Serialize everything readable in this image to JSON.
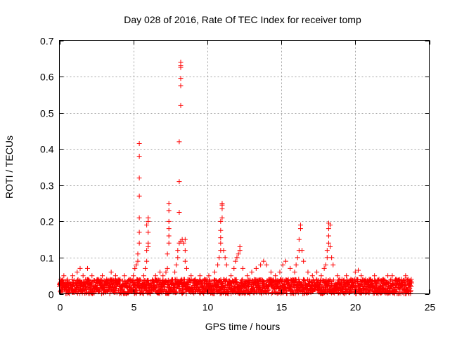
{
  "chart_data": {
    "type": "scatter",
    "title": "Day 028 of 2016, Rate Of TEC Index for receiver tomp",
    "xlabel": "GPS time / hours",
    "ylabel": "ROTI / TECUs",
    "xlim": [
      0,
      25
    ],
    "ylim": [
      0,
      0.7
    ],
    "xticks": [
      0,
      5,
      10,
      15,
      20,
      25
    ],
    "yticks": [
      0,
      0.1,
      0.2,
      0.3,
      0.4,
      0.5,
      0.6,
      0.7
    ],
    "xtick_labels": [
      "0",
      "5",
      "10",
      "15",
      "20",
      "25"
    ],
    "ytick_labels": [
      "0",
      "0.1",
      "0.2",
      "0.3",
      "0.4",
      "0.5",
      "0.6",
      "0.7"
    ],
    "grid": true,
    "marker": "plus",
    "color": "#ff0000",
    "baseline_band": {
      "x_range": [
        0,
        23.8
      ],
      "y_range": [
        0.0,
        0.04
      ]
    },
    "points": [
      [
        0.0,
        0.02
      ],
      [
        0.1,
        0.04
      ],
      [
        0.3,
        0.05
      ],
      [
        0.6,
        0.03
      ],
      [
        0.9,
        0.05
      ],
      [
        1.2,
        0.06
      ],
      [
        1.4,
        0.07
      ],
      [
        1.6,
        0.05
      ],
      [
        1.9,
        0.07
      ],
      [
        2.2,
        0.05
      ],
      [
        2.6,
        0.04
      ],
      [
        2.9,
        0.05
      ],
      [
        3.2,
        0.04
      ],
      [
        3.5,
        0.06
      ],
      [
        3.8,
        0.05
      ],
      [
        4.1,
        0.04
      ],
      [
        4.4,
        0.05
      ],
      [
        4.7,
        0.04
      ],
      [
        5.0,
        0.05
      ],
      [
        5.1,
        0.07
      ],
      [
        5.2,
        0.08
      ],
      [
        5.3,
        0.09
      ],
      [
        5.3,
        0.11
      ],
      [
        5.4,
        0.14
      ],
      [
        5.4,
        0.17
      ],
      [
        5.4,
        0.21
      ],
      [
        5.4,
        0.27
      ],
      [
        5.4,
        0.32
      ],
      [
        5.4,
        0.38
      ],
      [
        5.4,
        0.415
      ],
      [
        5.7,
        0.05
      ],
      [
        5.8,
        0.07
      ],
      [
        5.9,
        0.09
      ],
      [
        5.9,
        0.12
      ],
      [
        6.0,
        0.13
      ],
      [
        6.0,
        0.14
      ],
      [
        6.0,
        0.17
      ],
      [
        5.9,
        0.19
      ],
      [
        6.0,
        0.2
      ],
      [
        6.0,
        0.21
      ],
      [
        6.5,
        0.05
      ],
      [
        6.8,
        0.06
      ],
      [
        7.0,
        0.05
      ],
      [
        7.2,
        0.06
      ],
      [
        7.3,
        0.07
      ],
      [
        7.3,
        0.11
      ],
      [
        7.4,
        0.14
      ],
      [
        7.4,
        0.16
      ],
      [
        7.4,
        0.18
      ],
      [
        7.4,
        0.2
      ],
      [
        7.4,
        0.23
      ],
      [
        7.4,
        0.25
      ],
      [
        7.8,
        0.06
      ],
      [
        7.9,
        0.08
      ],
      [
        8.0,
        0.1
      ],
      [
        8.0,
        0.12
      ],
      [
        8.1,
        0.14
      ],
      [
        8.1,
        0.225
      ],
      [
        8.1,
        0.31
      ],
      [
        8.1,
        0.42
      ],
      [
        8.2,
        0.52
      ],
      [
        8.2,
        0.575
      ],
      [
        8.2,
        0.595
      ],
      [
        8.2,
        0.625
      ],
      [
        8.2,
        0.63
      ],
      [
        8.2,
        0.64
      ],
      [
        8.2,
        0.145
      ],
      [
        8.3,
        0.15
      ],
      [
        8.4,
        0.14
      ],
      [
        8.5,
        0.15
      ],
      [
        8.5,
        0.12
      ],
      [
        8.5,
        0.09
      ],
      [
        8.6,
        0.07
      ],
      [
        8.9,
        0.05
      ],
      [
        9.2,
        0.04
      ],
      [
        9.5,
        0.05
      ],
      [
        9.8,
        0.04
      ],
      [
        10.1,
        0.05
      ],
      [
        10.5,
        0.06
      ],
      [
        10.7,
        0.08
      ],
      [
        10.8,
        0.1
      ],
      [
        10.9,
        0.12
      ],
      [
        10.9,
        0.14
      ],
      [
        10.9,
        0.155
      ],
      [
        10.9,
        0.175
      ],
      [
        10.9,
        0.2
      ],
      [
        11.0,
        0.21
      ],
      [
        11.0,
        0.235
      ],
      [
        11.0,
        0.245
      ],
      [
        11.0,
        0.25
      ],
      [
        11.1,
        0.12
      ],
      [
        11.2,
        0.1
      ],
      [
        11.3,
        0.08
      ],
      [
        11.6,
        0.05
      ],
      [
        11.8,
        0.07
      ],
      [
        11.9,
        0.09
      ],
      [
        12.0,
        0.1
      ],
      [
        12.1,
        0.11
      ],
      [
        12.2,
        0.12
      ],
      [
        12.2,
        0.13
      ],
      [
        12.4,
        0.07
      ],
      [
        12.7,
        0.05
      ],
      [
        13.0,
        0.06
      ],
      [
        13.3,
        0.07
      ],
      [
        13.6,
        0.08
      ],
      [
        13.8,
        0.09
      ],
      [
        14.0,
        0.08
      ],
      [
        14.3,
        0.06
      ],
      [
        14.6,
        0.05
      ],
      [
        14.9,
        0.06
      ],
      [
        15.1,
        0.08
      ],
      [
        15.3,
        0.09
      ],
      [
        15.6,
        0.07
      ],
      [
        15.9,
        0.06
      ],
      [
        16.0,
        0.08
      ],
      [
        16.1,
        0.1
      ],
      [
        16.2,
        0.12
      ],
      [
        16.2,
        0.15
      ],
      [
        16.3,
        0.19
      ],
      [
        16.3,
        0.18
      ],
      [
        16.4,
        0.12
      ],
      [
        16.5,
        0.09
      ],
      [
        16.8,
        0.06
      ],
      [
        17.1,
        0.05
      ],
      [
        17.4,
        0.06
      ],
      [
        17.7,
        0.05
      ],
      [
        17.9,
        0.07
      ],
      [
        18.0,
        0.08
      ],
      [
        18.1,
        0.1
      ],
      [
        18.1,
        0.12
      ],
      [
        18.2,
        0.14
      ],
      [
        18.2,
        0.16
      ],
      [
        18.2,
        0.18
      ],
      [
        18.2,
        0.195
      ],
      [
        18.3,
        0.19
      ],
      [
        18.3,
        0.13
      ],
      [
        18.4,
        0.1
      ],
      [
        18.5,
        0.08
      ],
      [
        18.8,
        0.05
      ],
      [
        19.1,
        0.04
      ],
      [
        19.4,
        0.05
      ],
      [
        19.7,
        0.04
      ],
      [
        20.0,
        0.06
      ],
      [
        20.2,
        0.065
      ],
      [
        20.4,
        0.05
      ],
      [
        20.7,
        0.04
      ],
      [
        21.0,
        0.04
      ],
      [
        21.3,
        0.05
      ],
      [
        21.6,
        0.04
      ],
      [
        21.9,
        0.04
      ],
      [
        22.2,
        0.05
      ],
      [
        22.5,
        0.05
      ],
      [
        22.8,
        0.04
      ],
      [
        23.1,
        0.04
      ],
      [
        23.4,
        0.05
      ],
      [
        23.6,
        0.04
      ],
      [
        23.8,
        0.03
      ]
    ]
  }
}
